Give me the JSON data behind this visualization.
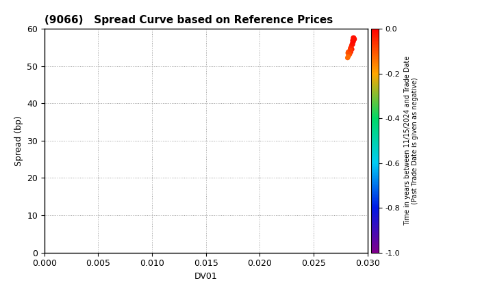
{
  "title": "(9066)   Spread Curve based on Reference Prices",
  "xlabel": "DV01",
  "ylabel": "Spread (bp)",
  "xlim": [
    0.0,
    0.03
  ],
  "ylim": [
    0,
    60
  ],
  "xticks": [
    0.0,
    0.005,
    0.01,
    0.015,
    0.02,
    0.025,
    0.03
  ],
  "yticks": [
    0,
    10,
    20,
    30,
    40,
    50,
    60
  ],
  "colorbar_label_line1": "Time in years between 11/15/2024 and Trade Date",
  "colorbar_label_line2": "(Past Trade Date is given as negative)",
  "colorbar_ticks": [
    0.0,
    -0.2,
    -0.4,
    -0.6,
    -0.8,
    -1.0
  ],
  "scatter_x": [
    0.02855,
    0.02845,
    0.02835,
    0.02862,
    0.02825,
    0.02818,
    0.02838,
    0.02848,
    0.02868,
    0.0284,
    0.02828,
    0.02815,
    0.02822,
    0.02842,
    0.02852,
    0.02858,
    0.02844,
    0.02832,
    0.0282,
    0.02875,
    0.02865,
    0.0287
  ],
  "scatter_y": [
    54.5,
    53.8,
    53.2,
    55.8,
    52.8,
    53.5,
    54.0,
    55.0,
    56.5,
    54.5,
    53.0,
    52.2,
    53.8,
    54.8,
    55.5,
    56.0,
    54.2,
    53.2,
    52.5,
    57.2,
    56.8,
    57.5
  ],
  "scatter_c": [
    -0.02,
    -0.04,
    -0.07,
    -0.01,
    -0.09,
    -0.11,
    -0.03,
    -0.02,
    -0.01,
    -0.05,
    -0.08,
    -0.12,
    -0.1,
    -0.06,
    -0.04,
    -0.02,
    -0.07,
    -0.09,
    -0.13,
    -0.01,
    -0.01,
    -0.02
  ],
  "scatter_sizes": [
    18,
    18,
    18,
    18,
    18,
    18,
    18,
    18,
    18,
    18,
    18,
    18,
    18,
    18,
    18,
    18,
    18,
    18,
    18,
    25,
    25,
    25
  ],
  "background_color": "#ffffff",
  "grid_color": "#999999",
  "title_fontsize": 11,
  "axis_label_fontsize": 9,
  "tick_fontsize": 9,
  "colorbar_tick_fontsize": 8,
  "colorbar_label_fontsize": 7
}
